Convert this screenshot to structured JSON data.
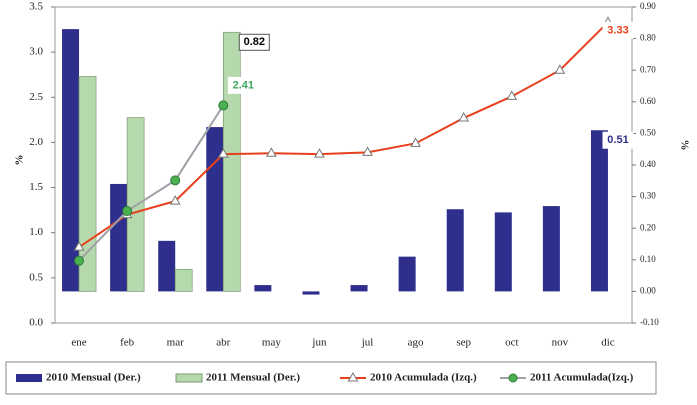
{
  "chart_data": {
    "type": "combo",
    "ylabel": "%",
    "y2label": "%",
    "categories": [
      "ene",
      "feb",
      "mar",
      "abr",
      "may",
      "jun",
      "jul",
      "ago",
      "sep",
      "oct",
      "nov",
      "dic"
    ],
    "ylim": [
      0,
      3.5
    ],
    "yticks": [
      {
        "value": 0,
        "label": "0.0"
      },
      0.5,
      {
        "value": 1,
        "label": "1.0"
      },
      1.5,
      {
        "value": 2,
        "label": "2.0"
      },
      2.5,
      {
        "value": 3,
        "label": "3.0"
      },
      3.5
    ],
    "y2lim": [
      -0.1,
      0.9
    ],
    "y2ticks": [
      {
        "value": -0.1,
        "label": "-0.10"
      },
      {
        "value": 0,
        "label": "0.00"
      },
      {
        "value": 0.1,
        "label": "0.10"
      },
      {
        "value": 0.2,
        "label": "0.20"
      },
      {
        "value": 0.3,
        "label": "0.30"
      },
      {
        "value": 0.4,
        "label": "0.40"
      },
      {
        "value": 0.5,
        "label": "0.50"
      },
      {
        "value": 0.6,
        "label": "0.60"
      },
      {
        "value": 0.7,
        "label": "0.70"
      },
      {
        "value": 0.8,
        "label": "0.80"
      },
      {
        "value": 0.9,
        "label": "0.90"
      }
    ],
    "legend": "bottom",
    "series": [
      {
        "name": "2010 Mensual (Der.)",
        "kind": "bar",
        "axis": "y2",
        "color": "#2e2f8c",
        "label_color": "#2e2f8c",
        "values": [
          0.83,
          0.34,
          0.16,
          0.52,
          0.02,
          -0.01,
          0.02,
          0.11,
          0.26,
          0.25,
          0.27,
          0.51
        ],
        "value_labels": [
          null,
          null,
          null,
          null,
          null,
          null,
          null,
          null,
          null,
          null,
          null,
          "0.51"
        ]
      },
      {
        "name": "2011 Mensual (Der.)",
        "kind": "bar",
        "axis": "y2",
        "color": "#b5d9ad",
        "label_color": "#000000",
        "values": [
          0.68,
          0.55,
          0.07,
          0.82,
          null,
          null,
          null,
          null,
          null,
          null,
          null,
          null
        ],
        "value_labels": [
          null,
          null,
          null,
          "0.82",
          null,
          null,
          null,
          null,
          null,
          null,
          null,
          null
        ]
      },
      {
        "name": "2010 Acumulada (Izq.)",
        "kind": "line",
        "marker": "triangle",
        "color": "#e8401c",
        "marker_color": "#ffffff",
        "label_color": "#e8401c",
        "values": [
          0.84,
          1.2,
          1.35,
          1.87,
          1.88,
          1.87,
          1.89,
          1.99,
          2.27,
          2.51,
          2.8,
          3.33
        ],
        "value_labels": [
          null,
          null,
          null,
          null,
          null,
          null,
          null,
          null,
          null,
          null,
          null,
          "3.33"
        ]
      },
      {
        "name": "2011 Acumulada(Izq.)",
        "kind": "line",
        "marker": "circle",
        "color": "#a0a0a8",
        "marker_color": "#4caf50",
        "label_color": "#3aa85a",
        "values": [
          0.69,
          1.24,
          1.58,
          2.41,
          null,
          null,
          null,
          null,
          null,
          null,
          null,
          null
        ],
        "value_labels": [
          null,
          null,
          null,
          "2.41",
          null,
          null,
          null,
          null,
          null,
          null,
          null,
          null
        ]
      }
    ]
  }
}
